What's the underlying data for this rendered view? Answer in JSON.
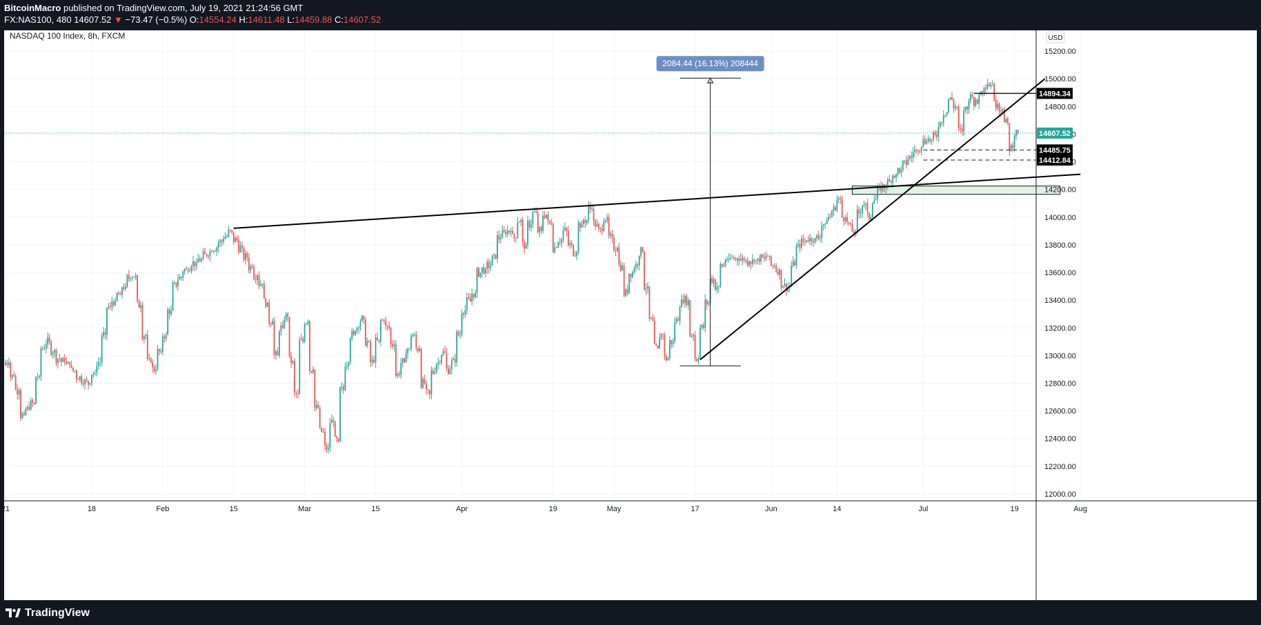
{
  "header": {
    "publisher": "BitcoinMacro",
    "published_text": "published on TradingView.com, July 19, 2021 21:24:56 GMT",
    "symbol_info": "FX:NAS100, 480",
    "last_price": "14607.52",
    "change": "−73.47 (−0.5%)",
    "o_label": "O:",
    "o_value": "14554.24",
    "h_label": "H:",
    "h_value": "14611.48",
    "l_label": "L:",
    "l_value": "14459.88",
    "c_label": "C:",
    "c_value": "14607.52"
  },
  "chart_title": "NASDAQ 100 Index, 8h, FXCM",
  "currency": "USD",
  "brand": "TradingView",
  "colors": {
    "up": "#26a69a",
    "down": "#ef5350",
    "last_price_bg": "#26a69a",
    "measure_bg": "#6b8fc5",
    "zone_fill": "#e0f2e2"
  },
  "chart_data": {
    "type": "candlestick",
    "title": "NASDAQ 100 Index, 8h, FXCM",
    "ylim": [
      11950,
      15350
    ],
    "y_ticks": [
      12000,
      12200,
      12400,
      12600,
      12800,
      13000,
      13200,
      13400,
      13600,
      13800,
      14000,
      14200,
      14400,
      14600,
      14800,
      15000,
      15200
    ],
    "y_tick_labels": [
      "12000.00",
      "12200.00",
      "12400.00",
      "12600.00",
      "12800.00",
      "13000.00",
      "13200.00",
      "13400.00",
      "13600.00",
      "13800.00",
      "14000.00",
      "14200.00",
      "14400.00",
      "14600.00",
      "14800.00",
      "15000.00",
      "15200.00"
    ],
    "x_ticks": [
      {
        "label": "21",
        "t": 0
      },
      {
        "label": "18",
        "t": 17
      },
      {
        "label": "Feb",
        "t": 31
      },
      {
        "label": "15",
        "t": 45
      },
      {
        "label": "Mar",
        "t": 59
      },
      {
        "label": "15",
        "t": 73
      },
      {
        "label": "Apr",
        "t": 90
      },
      {
        "label": "19",
        "t": 108
      },
      {
        "label": "May",
        "t": 120
      },
      {
        "label": "17",
        "t": 136
      },
      {
        "label": "Jun",
        "t": 151
      },
      {
        "label": "14",
        "t": 164
      },
      {
        "label": "Jul",
        "t": 181
      },
      {
        "label": "19",
        "t": 199
      },
      {
        "label": "Aug",
        "t": 212
      }
    ],
    "xlim": [
      0,
      227
    ],
    "anchors": [
      [
        0,
        12950
      ],
      [
        2,
        12750
      ],
      [
        3,
        12570
      ],
      [
        5,
        12650
      ],
      [
        7,
        13050
      ],
      [
        8,
        13100
      ],
      [
        10,
        12980
      ],
      [
        12,
        12930
      ],
      [
        14,
        12850
      ],
      [
        16,
        12800
      ],
      [
        18,
        12950
      ],
      [
        20,
        13350
      ],
      [
        22,
        13440
      ],
      [
        24,
        13560
      ],
      [
        25,
        13580
      ],
      [
        27,
        13150
      ],
      [
        28,
        12950
      ],
      [
        29,
        12900
      ],
      [
        31,
        13150
      ],
      [
        33,
        13500
      ],
      [
        35,
        13620
      ],
      [
        37,
        13670
      ],
      [
        39,
        13720
      ],
      [
        41,
        13780
      ],
      [
        43,
        13860
      ],
      [
        44,
        13890
      ],
      [
        46,
        13780
      ],
      [
        48,
        13640
      ],
      [
        50,
        13520
      ],
      [
        52,
        13250
      ],
      [
        53,
        13000
      ],
      [
        54,
        13200
      ],
      [
        55,
        13280
      ],
      [
        56,
        12960
      ],
      [
        57,
        12720
      ],
      [
        58,
        13100
      ],
      [
        59,
        13250
      ],
      [
        60,
        12900
      ],
      [
        61,
        12620
      ],
      [
        62,
        12450
      ],
      [
        63,
        12330
      ],
      [
        64,
        12520
      ],
      [
        65,
        12380
      ],
      [
        66,
        12750
      ],
      [
        67,
        12950
      ],
      [
        68,
        13150
      ],
      [
        70,
        13260
      ],
      [
        71,
        13100
      ],
      [
        72,
        12950
      ],
      [
        74,
        13250
      ],
      [
        75,
        13200
      ],
      [
        76,
        13080
      ],
      [
        77,
        12860
      ],
      [
        78,
        12950
      ],
      [
        80,
        13150
      ],
      [
        81,
        13050
      ],
      [
        82,
        12800
      ],
      [
        83,
        12720
      ],
      [
        84,
        12880
      ],
      [
        86,
        13020
      ],
      [
        87,
        12900
      ],
      [
        88,
        12950
      ],
      [
        89,
        13150
      ],
      [
        90,
        13330
      ],
      [
        92,
        13450
      ],
      [
        93,
        13600
      ],
      [
        95,
        13650
      ],
      [
        96,
        13700
      ],
      [
        97,
        13850
      ],
      [
        99,
        13900
      ],
      [
        100,
        13850
      ],
      [
        101,
        13980
      ],
      [
        102,
        13800
      ],
      [
        103,
        13950
      ],
      [
        104,
        14030
      ],
      [
        105,
        13900
      ],
      [
        106,
        14020
      ],
      [
        107,
        13950
      ],
      [
        108,
        13780
      ],
      [
        110,
        13900
      ],
      [
        111,
        13800
      ],
      [
        112,
        13750
      ],
      [
        113,
        13950
      ],
      [
        114,
        13980
      ],
      [
        115,
        14060
      ],
      [
        116,
        13950
      ],
      [
        117,
        13900
      ],
      [
        118,
        14000
      ],
      [
        119,
        13850
      ],
      [
        120,
        13780
      ],
      [
        121,
        13650
      ],
      [
        122,
        13450
      ],
      [
        123,
        13600
      ],
      [
        124,
        13650
      ],
      [
        125,
        13750
      ],
      [
        126,
        13500
      ],
      [
        127,
        13250
      ],
      [
        128,
        13050
      ],
      [
        129,
        13150
      ],
      [
        130,
        12980
      ],
      [
        131,
        13100
      ],
      [
        132,
        13250
      ],
      [
        133,
        13380
      ],
      [
        134,
        13400
      ],
      [
        135,
        13150
      ],
      [
        136,
        12980
      ],
      [
        137,
        13200
      ],
      [
        138,
        13380
      ],
      [
        139,
        13550
      ],
      [
        140,
        13500
      ],
      [
        141,
        13650
      ],
      [
        142,
        13700
      ],
      [
        144,
        13700
      ],
      [
        146,
        13680
      ],
      [
        148,
        13680
      ],
      [
        150,
        13720
      ],
      [
        151,
        13650
      ],
      [
        152,
        13620
      ],
      [
        153,
        13520
      ],
      [
        154,
        13500
      ],
      [
        155,
        13650
      ],
      [
        156,
        13780
      ],
      [
        157,
        13820
      ],
      [
        158,
        13850
      ],
      [
        160,
        13850
      ],
      [
        161,
        13950
      ],
      [
        162,
        14000
      ],
      [
        163,
        14050
      ],
      [
        164,
        14130
      ],
      [
        165,
        14000
      ],
      [
        166,
        13950
      ],
      [
        167,
        13900
      ],
      [
        168,
        14030
      ],
      [
        169,
        14100
      ],
      [
        170,
        14000
      ],
      [
        171,
        14130
      ],
      [
        172,
        14190
      ],
      [
        174,
        14250
      ],
      [
        175,
        14310
      ],
      [
        177,
        14380
      ],
      [
        178,
        14430
      ],
      [
        179,
        14480
      ],
      [
        180,
        14510
      ],
      [
        181,
        14550
      ],
      [
        182,
        14560
      ],
      [
        183,
        14580
      ],
      [
        184,
        14680
      ],
      [
        185,
        14760
      ],
      [
        186,
        14850
      ],
      [
        187,
        14800
      ],
      [
        188,
        14620
      ],
      [
        189,
        14780
      ],
      [
        190,
        14870
      ],
      [
        191,
        14820
      ],
      [
        192,
        14900
      ],
      [
        193,
        14960
      ],
      [
        194,
        14960
      ],
      [
        195,
        14820
      ],
      [
        196,
        14780
      ],
      [
        197,
        14680
      ],
      [
        198,
        14500
      ],
      [
        199,
        14608
      ]
    ],
    "drawings": {
      "resistance_line": {
        "t1": 45,
        "p1": 13920,
        "t2": 212,
        "p2": 14310
      },
      "support_line": {
        "t1": 137,
        "p1": 12970,
        "t2": 205,
        "p2": 15000
      },
      "zone": {
        "t1": 167,
        "t2": 208,
        "p1": 14225,
        "p2": 14165
      },
      "measure": {
        "t": 139,
        "t_left": 133,
        "t_right": 145,
        "p_low": 12925,
        "p_high": 15005,
        "label": "2084.44 (16.13%) 208444"
      },
      "top_level": {
        "t1": 191,
        "price": 14894.34
      },
      "dashed_1": {
        "t1": 181,
        "price": 14485.75
      },
      "dashed_2": {
        "t1": 181,
        "price": 14412.84
      },
      "last_price": 14607.52
    },
    "price_labels": [
      "14894.34",
      "14607.52",
      "14485.75",
      "14412.84"
    ]
  }
}
